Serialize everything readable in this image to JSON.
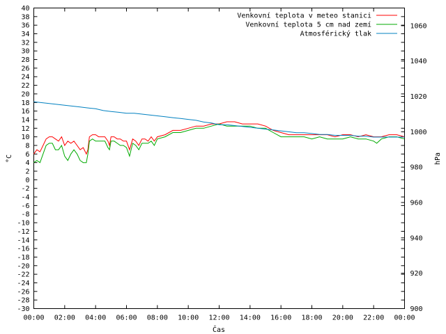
{
  "chart_data": {
    "type": "line",
    "xlabel": "Čas",
    "ylabel": "°C",
    "y2label": "hPa",
    "xticks": [
      "00:00",
      "02:00",
      "04:00",
      "06:00",
      "08:00",
      "10:00",
      "12:00",
      "14:00",
      "16:00",
      "18:00",
      "20:00",
      "22:00",
      "00:00"
    ],
    "xlim_hours": [
      0,
      24
    ],
    "ylim": [
      -30,
      40
    ],
    "ytick_step": 2,
    "y2lim": [
      900,
      1070
    ],
    "y2tick_step": 20,
    "grid": false,
    "legend_position": "top-right",
    "series": [
      {
        "name": "Venkovní teplota v meteo stanici",
        "axis": "y",
        "color": "#ff0000",
        "points": [
          [
            0,
            6
          ],
          [
            0.2,
            7
          ],
          [
            0.4,
            6.5
          ],
          [
            0.6,
            8
          ],
          [
            0.8,
            9.5
          ],
          [
            1.0,
            10
          ],
          [
            1.2,
            10
          ],
          [
            1.4,
            9.5
          ],
          [
            1.6,
            9
          ],
          [
            1.8,
            10
          ],
          [
            2.0,
            8
          ],
          [
            2.2,
            9
          ],
          [
            2.4,
            8.5
          ],
          [
            2.6,
            9
          ],
          [
            2.8,
            8
          ],
          [
            3.0,
            7
          ],
          [
            3.2,
            7.5
          ],
          [
            3.4,
            6
          ],
          [
            3.5,
            7
          ],
          [
            3.6,
            10
          ],
          [
            3.8,
            10.5
          ],
          [
            4.0,
            10.5
          ],
          [
            4.2,
            10
          ],
          [
            4.4,
            10
          ],
          [
            4.6,
            10
          ],
          [
            4.8,
            9
          ],
          [
            4.9,
            8
          ],
          [
            5.0,
            10
          ],
          [
            5.2,
            10
          ],
          [
            5.4,
            9.5
          ],
          [
            5.6,
            9.5
          ],
          [
            5.8,
            9
          ],
          [
            6.0,
            9
          ],
          [
            6.2,
            7
          ],
          [
            6.4,
            9.5
          ],
          [
            6.6,
            9
          ],
          [
            6.8,
            8
          ],
          [
            7.0,
            9.5
          ],
          [
            7.2,
            9.5
          ],
          [
            7.4,
            9
          ],
          [
            7.6,
            10
          ],
          [
            7.8,
            9
          ],
          [
            8.0,
            10
          ],
          [
            8.5,
            10.5
          ],
          [
            9.0,
            11.5
          ],
          [
            9.5,
            11.5
          ],
          [
            10.0,
            12
          ],
          [
            10.5,
            12.5
          ],
          [
            11.0,
            12.5
          ],
          [
            11.5,
            13
          ],
          [
            12.0,
            13
          ],
          [
            12.5,
            13.5
          ],
          [
            13.0,
            13.5
          ],
          [
            13.5,
            13
          ],
          [
            14.0,
            13
          ],
          [
            14.5,
            13
          ],
          [
            15.0,
            12.5
          ],
          [
            15.5,
            11.5
          ],
          [
            16.0,
            11
          ],
          [
            16.5,
            10.5
          ],
          [
            17.0,
            10.5
          ],
          [
            17.5,
            10.5
          ],
          [
            18.0,
            10.5
          ],
          [
            18.5,
            10.5
          ],
          [
            19.0,
            10.5
          ],
          [
            19.5,
            10
          ],
          [
            20.0,
            10.5
          ],
          [
            20.5,
            10.5
          ],
          [
            21.0,
            10
          ],
          [
            21.5,
            10.5
          ],
          [
            22.0,
            10
          ],
          [
            22.5,
            10
          ],
          [
            23.0,
            10.5
          ],
          [
            23.5,
            10.5
          ],
          [
            24.0,
            10
          ]
        ]
      },
      {
        "name": "Venkovní teplota 5 cm nad zemí",
        "axis": "y",
        "color": "#00aa00",
        "points": [
          [
            0,
            4
          ],
          [
            0.2,
            4.5
          ],
          [
            0.4,
            4
          ],
          [
            0.6,
            6
          ],
          [
            0.8,
            8
          ],
          [
            1.0,
            8.5
          ],
          [
            1.2,
            8.5
          ],
          [
            1.4,
            7
          ],
          [
            1.6,
            7
          ],
          [
            1.8,
            8
          ],
          [
            2.0,
            5.5
          ],
          [
            2.2,
            4.5
          ],
          [
            2.4,
            6
          ],
          [
            2.6,
            7
          ],
          [
            2.8,
            6
          ],
          [
            3.0,
            4.5
          ],
          [
            3.2,
            4
          ],
          [
            3.4,
            4
          ],
          [
            3.5,
            6
          ],
          [
            3.6,
            9
          ],
          [
            3.8,
            9.5
          ],
          [
            4.0,
            9
          ],
          [
            4.2,
            9
          ],
          [
            4.4,
            9
          ],
          [
            4.6,
            9
          ],
          [
            4.8,
            7.5
          ],
          [
            4.9,
            7
          ],
          [
            5.0,
            9
          ],
          [
            5.2,
            9
          ],
          [
            5.4,
            8.5
          ],
          [
            5.6,
            8
          ],
          [
            5.8,
            8
          ],
          [
            6.0,
            7.5
          ],
          [
            6.2,
            5.5
          ],
          [
            6.4,
            8.5
          ],
          [
            6.6,
            8
          ],
          [
            6.8,
            7
          ],
          [
            7.0,
            8.5
          ],
          [
            7.2,
            8.5
          ],
          [
            7.4,
            8.5
          ],
          [
            7.6,
            9
          ],
          [
            7.8,
            8
          ],
          [
            8.0,
            9.5
          ],
          [
            8.5,
            10
          ],
          [
            9.0,
            11
          ],
          [
            9.5,
            11
          ],
          [
            10.0,
            11.5
          ],
          [
            10.5,
            12
          ],
          [
            11.0,
            12
          ],
          [
            11.5,
            12.5
          ],
          [
            12.0,
            13
          ],
          [
            12.5,
            12.5
          ],
          [
            13.0,
            12.5
          ],
          [
            13.5,
            12.5
          ],
          [
            14.0,
            12.5
          ],
          [
            14.5,
            12
          ],
          [
            15.0,
            12
          ],
          [
            15.5,
            11
          ],
          [
            16.0,
            10
          ],
          [
            16.5,
            10
          ],
          [
            17.0,
            10
          ],
          [
            17.5,
            10
          ],
          [
            18.0,
            9.5
          ],
          [
            18.5,
            10
          ],
          [
            19.0,
            9.5
          ],
          [
            19.5,
            9.5
          ],
          [
            20.0,
            9.5
          ],
          [
            20.5,
            10
          ],
          [
            21.0,
            9.5
          ],
          [
            21.5,
            9.5
          ],
          [
            22.0,
            9
          ],
          [
            22.2,
            8.5
          ],
          [
            22.5,
            9.5
          ],
          [
            23.0,
            10
          ],
          [
            23.5,
            10
          ],
          [
            24.0,
            9.5
          ]
        ]
      },
      {
        "name": "Atmosférický tlak",
        "axis": "y2",
        "color": "#0080c0",
        "points": [
          [
            0,
            1017
          ],
          [
            0.5,
            1016.5
          ],
          [
            1.0,
            1016
          ],
          [
            1.5,
            1015.5
          ],
          [
            2.0,
            1015
          ],
          [
            2.5,
            1014.5
          ],
          [
            3.0,
            1014
          ],
          [
            3.5,
            1013.5
          ],
          [
            4.0,
            1013
          ],
          [
            4.5,
            1012
          ],
          [
            5.0,
            1011.5
          ],
          [
            5.5,
            1011
          ],
          [
            6.0,
            1010.5
          ],
          [
            6.5,
            1010.5
          ],
          [
            7.0,
            1010
          ],
          [
            7.5,
            1009.5
          ],
          [
            8.0,
            1009
          ],
          [
            8.5,
            1008.5
          ],
          [
            9.0,
            1008
          ],
          [
            9.5,
            1007.5
          ],
          [
            10.0,
            1007
          ],
          [
            10.5,
            1006.5
          ],
          [
            11.0,
            1005.5
          ],
          [
            11.5,
            1005
          ],
          [
            12.0,
            1004
          ],
          [
            12.5,
            1004
          ],
          [
            13.0,
            1003.5
          ],
          [
            13.5,
            1003
          ],
          [
            14.0,
            1002.5
          ],
          [
            14.5,
            1002
          ],
          [
            15.0,
            1001.5
          ],
          [
            15.5,
            1001
          ],
          [
            16.0,
            1000.5
          ],
          [
            16.5,
            1000
          ],
          [
            17.0,
            999.5
          ],
          [
            17.5,
            999.5
          ],
          [
            18.0,
            999
          ],
          [
            18.5,
            998.5
          ],
          [
            19.0,
            998.5
          ],
          [
            19.5,
            998
          ],
          [
            20.0,
            998
          ],
          [
            20.5,
            998
          ],
          [
            21.0,
            997.5
          ],
          [
            21.5,
            997.5
          ],
          [
            22.0,
            997
          ],
          [
            22.5,
            997
          ],
          [
            23.0,
            997
          ],
          [
            23.5,
            997
          ],
          [
            24.0,
            997
          ]
        ]
      }
    ]
  }
}
